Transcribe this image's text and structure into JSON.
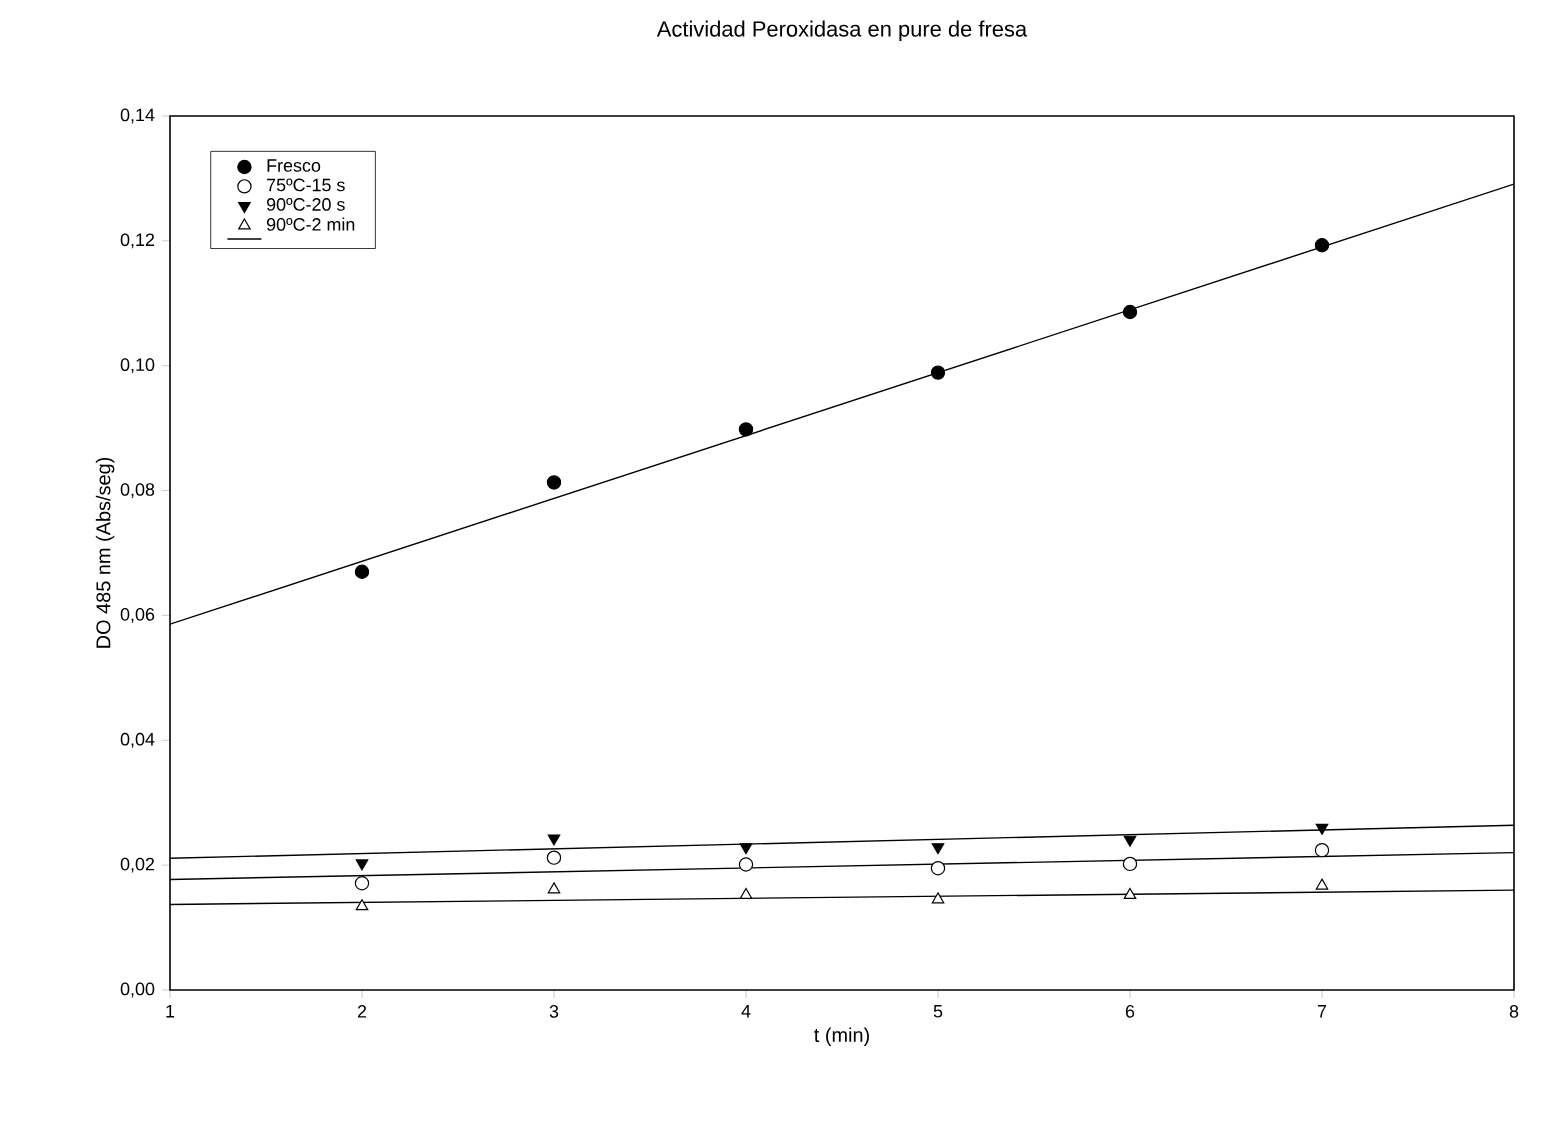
{
  "chart_data": {
    "type": "scatter",
    "title": "Actividad Peroxidasa en pure de fresa",
    "xlabel": "t (min)",
    "ylabel": "DO 485 nm (Abs/seg)",
    "xlim": [
      1,
      8
    ],
    "xticks": [
      1,
      2,
      3,
      4,
      5,
      6,
      7,
      8
    ],
    "ylim": [
      0,
      0.14
    ],
    "yticks": [
      {
        "value": 0,
        "label": "0,00"
      },
      {
        "value": 0.02,
        "label": "0,02"
      },
      {
        "value": 0.04,
        "label": "0,04"
      },
      {
        "value": 0.06,
        "label": "0,06"
      },
      {
        "value": 0.08,
        "label": "0,08"
      },
      {
        "value": 0.1,
        "label": "0,10"
      },
      {
        "value": 0.12,
        "label": "0,12"
      },
      {
        "value": 0.14,
        "label": "0,14"
      }
    ],
    "legend": "top left",
    "grid": false,
    "series": [
      {
        "name": "Fresco",
        "marker": "circle",
        "color": "#000000",
        "x": [
          2,
          3,
          4,
          5,
          6,
          7
        ],
        "values": [
          0.067,
          0.0813,
          0.0898,
          0.0989,
          0.1086,
          0.1193
        ]
      },
      {
        "name": "75ºC-15 s",
        "marker": "circle-open",
        "color": "#000000",
        "x": [
          2,
          3,
          4,
          5,
          6,
          7
        ],
        "values": [
          0.0171,
          0.0212,
          0.0201,
          0.0195,
          0.0202,
          0.0224
        ]
      },
      {
        "name": "90ºC-20 s",
        "marker": "triangle-down",
        "color": "#000000",
        "x": [
          2,
          3,
          4,
          5,
          6,
          7
        ],
        "values": [
          0.0203,
          0.0243,
          0.0229,
          0.0229,
          0.0241,
          0.026
        ]
      },
      {
        "name": "90ºC-2 min",
        "marker": "triangle-open",
        "color": "#000000",
        "x": [
          2,
          3,
          4,
          5,
          6,
          7
        ],
        "values": [
          0.0134,
          0.0161,
          0.0152,
          0.0145,
          0.0152,
          0.0167
        ]
      },
      {
        "type": "line",
        "color": "#000000",
        "x": [
          1,
          8
        ],
        "values": [
          0.0586,
          0.1291
        ]
      },
      {
        "type": "line",
        "color": "#000000",
        "x": [
          1,
          8
        ],
        "values": [
          0.0211,
          0.0264
        ]
      },
      {
        "type": "line",
        "color": "#000000",
        "x": [
          1,
          8
        ],
        "values": [
          0.0177,
          0.022
        ]
      },
      {
        "type": "line",
        "color": "#000000",
        "x": [
          1,
          8
        ],
        "values": [
          0.0137,
          0.016
        ]
      }
    ]
  }
}
